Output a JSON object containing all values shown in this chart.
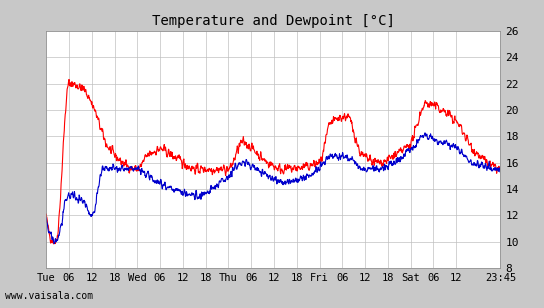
{
  "title": "Temperature and Dewpoint [°C]",
  "bg_color": "#c8c8c8",
  "plot_bg_color": "#ffffff",
  "grid_color": "#c0c0c0",
  "temp_color": "#ff0000",
  "dewpoint_color": "#0000cc",
  "ylim": [
    8,
    26
  ],
  "yticks": [
    8,
    10,
    12,
    14,
    16,
    18,
    20,
    22,
    24,
    26
  ],
  "xtick_labels": [
    "Tue",
    "06",
    "12",
    "18",
    "Wed",
    "06",
    "12",
    "18",
    "Thu",
    "06",
    "12",
    "18",
    "Fri",
    "06",
    "12",
    "18",
    "Sat",
    "06",
    "12",
    "23:45"
  ],
  "watermark": "www.vaisala.com",
  "line_width": 0.8
}
